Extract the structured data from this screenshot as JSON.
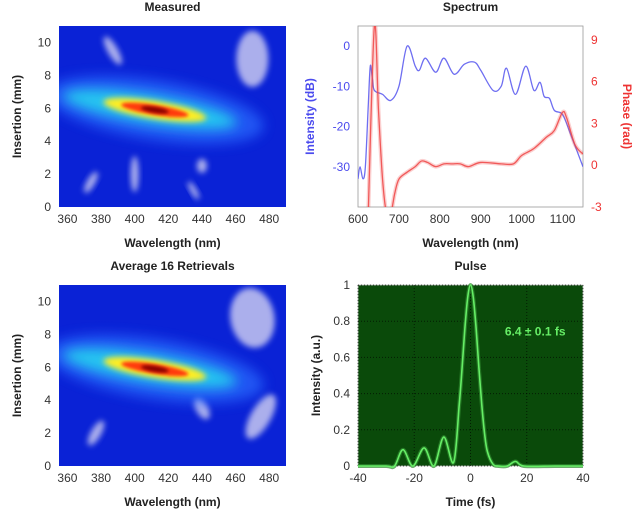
{
  "chart_data": [
    {
      "type": "heatmap",
      "title": "Measured",
      "xlabel": "Wavelength (nm)",
      "ylabel": "Insertion (mm)",
      "xlim": [
        355,
        490
      ],
      "ylim": [
        0,
        11
      ],
      "xticks": [
        360,
        380,
        400,
        420,
        440,
        460,
        480
      ],
      "yticks": [
        0,
        2,
        4,
        6,
        8,
        10
      ],
      "colormap": "jet",
      "peak": {
        "wavelength_nm": 412,
        "insertion_mm": 5.9
      }
    },
    {
      "type": "line",
      "title": "Spectrum",
      "xlabel": "Wavelength (nm)",
      "ylabel": "Intensity (dB)",
      "y2label": "Phase (rad)",
      "xlim": [
        600,
        1150
      ],
      "ylim": [
        -40,
        5
      ],
      "y2lim": [
        -3,
        10
      ],
      "xticks": [
        600,
        700,
        800,
        900,
        1000,
        1100
      ],
      "yticks": [
        -30,
        -20,
        -10,
        0
      ],
      "y2ticks": [
        -3,
        0,
        3,
        6,
        9
      ],
      "series": [
        {
          "axis": "left",
          "color": "#5555ee",
          "x": [
            600,
            605,
            612,
            618,
            625,
            630,
            635,
            640,
            660,
            680,
            700,
            720,
            740,
            750,
            765,
            790,
            810,
            835,
            860,
            885,
            900,
            930,
            950,
            963,
            985,
            1010,
            1030,
            1045,
            1055,
            1068,
            1080,
            1100,
            1120,
            1150
          ],
          "y": [
            -33,
            -30,
            -33,
            -30,
            -15,
            -5,
            -8,
            -11,
            -12,
            -13.5,
            -10,
            0,
            -5,
            -6,
            -3,
            -6.5,
            -3,
            -7,
            -4.5,
            -4,
            -6,
            -11,
            -10,
            -5.5,
            -12,
            -5,
            -11,
            -9,
            -12.5,
            -13,
            -16,
            -17,
            -22,
            -30
          ]
        },
        {
          "axis": "right",
          "color": "#ee4444",
          "x": [
            625,
            640,
            650,
            660,
            670,
            680,
            690,
            700,
            720,
            740,
            755,
            770,
            790,
            810,
            830,
            850,
            870,
            900,
            950,
            980,
            1000,
            1030,
            1060,
            1080,
            1100,
            1110,
            1130,
            1150
          ],
          "y": [
            -3.5,
            10,
            4,
            -1,
            -3.5,
            -3.5,
            -2,
            -1,
            -0.5,
            -0.1,
            0.3,
            0.2,
            -0.1,
            0.1,
            0.1,
            0.1,
            -0.1,
            0.2,
            0.1,
            0.1,
            0.7,
            1.2,
            2.0,
            2.5,
            3.8,
            3.4,
            1.5,
            0.8
          ]
        }
      ]
    },
    {
      "type": "heatmap",
      "title": "Average 16 Retrievals",
      "xlabel": "Wavelength (nm)",
      "ylabel": "Insertion (mm)",
      "xlim": [
        355,
        490
      ],
      "ylim": [
        0,
        11
      ],
      "xticks": [
        360,
        380,
        400,
        420,
        440,
        460,
        480
      ],
      "yticks": [
        0,
        2,
        4,
        6,
        8,
        10
      ],
      "colormap": "jet",
      "peak": {
        "wavelength_nm": 412,
        "insertion_mm": 5.9
      }
    },
    {
      "type": "line",
      "title": "Pulse",
      "xlabel": "Time (fs)",
      "ylabel": "Intensity (a.u.)",
      "xlim": [
        -40,
        40
      ],
      "ylim": [
        0,
        1
      ],
      "xticks": [
        -40,
        -20,
        0,
        20,
        40
      ],
      "yticks": [
        0,
        0.2,
        0.4,
        0.6,
        0.8,
        1
      ],
      "yticklabels": [
        "0",
        "0.2",
        "0.4",
        "0.6",
        "0.8",
        "1"
      ],
      "grid": true,
      "background": "#0a4a0a",
      "annotation": "6.4 ± 0.1 fs",
      "series": [
        {
          "color": "#66ee66",
          "x": [
            -40,
            -30,
            -27,
            -24,
            -20.5,
            -16.5,
            -13,
            -9.5,
            -6,
            -4,
            -3,
            -2,
            -1,
            0,
            1,
            2,
            3,
            4,
            5,
            6,
            8,
            10,
            13,
            16,
            19,
            30,
            40
          ],
          "y": [
            0,
            0,
            0,
            0.09,
            0,
            0.1,
            0,
            0.16,
            0.02,
            0.34,
            0.54,
            0.76,
            0.93,
            1,
            0.93,
            0.76,
            0.54,
            0.34,
            0.18,
            0.08,
            0.01,
            0,
            0,
            0.025,
            0,
            0,
            0
          ]
        }
      ]
    }
  ]
}
